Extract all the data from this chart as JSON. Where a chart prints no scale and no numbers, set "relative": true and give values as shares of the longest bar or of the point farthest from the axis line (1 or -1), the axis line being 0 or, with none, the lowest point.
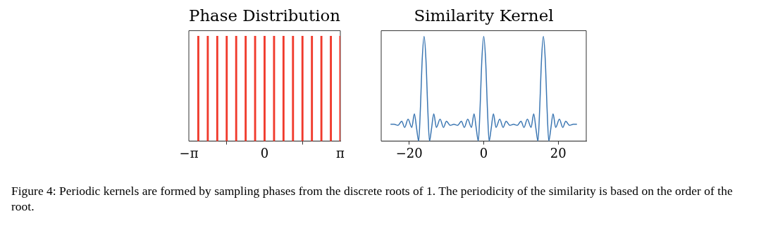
{
  "chart_data": [
    {
      "type": "bar",
      "title": "Phase Distribution",
      "relative": true,
      "tick_labels": "x",
      "color": "#f03a2c",
      "x": [
        -2.749,
        -2.356,
        -1.963,
        -1.571,
        -1.178,
        -0.785,
        -0.393,
        0,
        0.393,
        0.785,
        1.178,
        1.571,
        1.963,
        2.356,
        2.749,
        3.14
      ],
      "values": [
        1,
        1,
        1,
        1,
        1,
        1,
        1,
        1,
        1,
        1,
        1,
        1,
        1,
        1,
        1,
        1
      ],
      "xlim": [
        -3.1416,
        3.1416
      ],
      "xticks": [
        {
          "value": -3.1416,
          "label": "−π"
        },
        0,
        {
          "value": 3.1416,
          "label": "π"
        }
      ],
      "annotations": [
        "Figure 4: Periodic kernels are formed by sampling phases from the discrete roots of 1. The periodicity of the similarity is based on the order of the root."
      ]
    },
    {
      "type": "line",
      "title": "Similarity Kernel",
      "relative": true,
      "tick_labels": "x",
      "color": "#3b76b2",
      "x": [
        -25,
        -24,
        -23,
        -22,
        -21.2,
        -20.3,
        -19.3,
        -18.6,
        -18,
        -17.45,
        -17,
        -16.5,
        -16,
        -15.5,
        -15,
        -14.55,
        -14,
        -13.4,
        -12.7,
        -11.7,
        -10.8,
        -10,
        -9,
        -8,
        -7,
        -6,
        -5.2,
        -4.3,
        -3.3,
        -2.6,
        -2,
        -1.45,
        -1,
        -0.5,
        0,
        0.5,
        1,
        1.45,
        2,
        2.6,
        3.3,
        4.3,
        5.2,
        6,
        7,
        8,
        9,
        10,
        10.8,
        11.7,
        12.7,
        13.4,
        14,
        14.55,
        15,
        15.5,
        16,
        16.5,
        17,
        17.45,
        18,
        18.6,
        19.3,
        20.3,
        21.2,
        22,
        23,
        24,
        25
      ],
      "values": [
        0.16,
        0.16,
        0.15,
        0.19,
        0.13,
        0.21,
        0.13,
        0.26,
        0.12,
        0,
        0.3,
        0.78,
        1,
        0.78,
        0.3,
        0,
        0.12,
        0.26,
        0.13,
        0.21,
        0.13,
        0.19,
        0.15,
        0.16,
        0.15,
        0.19,
        0.13,
        0.21,
        0.13,
        0.26,
        0.12,
        0,
        0.3,
        0.78,
        1,
        0.78,
        0.3,
        0,
        0.12,
        0.26,
        0.13,
        0.21,
        0.13,
        0.19,
        0.15,
        0.16,
        0.15,
        0.19,
        0.13,
        0.21,
        0.13,
        0.26,
        0.12,
        0,
        0.3,
        0.78,
        1,
        0.78,
        0.3,
        0,
        0.12,
        0.26,
        0.13,
        0.21,
        0.13,
        0.19,
        0.15,
        0.16,
        0.16
      ],
      "xlim": [
        -27.5,
        27.5
      ],
      "xticks": [
        -20,
        0,
        20
      ]
    }
  ]
}
